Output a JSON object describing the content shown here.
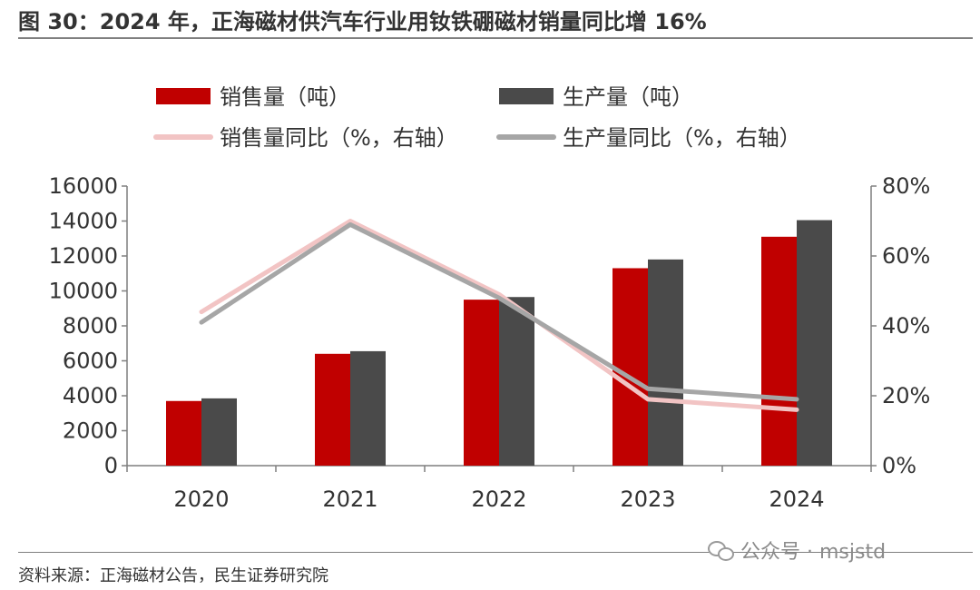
{
  "figure": {
    "title": "图 30：2024 年，正海磁材供汽车行业用钕铁硼磁材销量同比增 16%",
    "source": "资料来源：正海磁材公告，民生证券研究院",
    "watermark": "公众号 · msjstd",
    "watermark_icon": "wechat-icon"
  },
  "colors": {
    "sales_bar": "#c00000",
    "production_bar": "#4a4a4a",
    "sales_yoy_line": "#f2c4c4",
    "production_yoy_line": "#a6a6a6"
  },
  "chart_data": {
    "type": "bar",
    "categories": [
      "2020",
      "2021",
      "2022",
      "2023",
      "2024"
    ],
    "series": [
      {
        "name": "销售量（吨）",
        "type": "bar",
        "axis": "left",
        "values": [
          3700,
          6400,
          9500,
          11300,
          13100
        ]
      },
      {
        "name": "生产量（吨）",
        "type": "bar",
        "axis": "left",
        "values": [
          3850,
          6550,
          9650,
          11800,
          14050
        ]
      },
      {
        "name": "销售量同比（%，右轴）",
        "type": "line",
        "axis": "right",
        "values": [
          44,
          70,
          49,
          19,
          16
        ]
      },
      {
        "name": "生产量同比（%，右轴）",
        "type": "line",
        "axis": "right",
        "values": [
          41,
          69,
          48,
          22,
          19
        ]
      }
    ],
    "y_left": {
      "ylim": [
        0,
        16000
      ],
      "ticks": [
        "0",
        "2000",
        "4000",
        "6000",
        "8000",
        "10000",
        "12000",
        "14000",
        "16000"
      ]
    },
    "y_right": {
      "ylim": [
        0,
        80
      ],
      "ticks": [
        "0%",
        "20%",
        "40%",
        "60%",
        "80%"
      ]
    },
    "legend_position": "top",
    "grid": false
  }
}
